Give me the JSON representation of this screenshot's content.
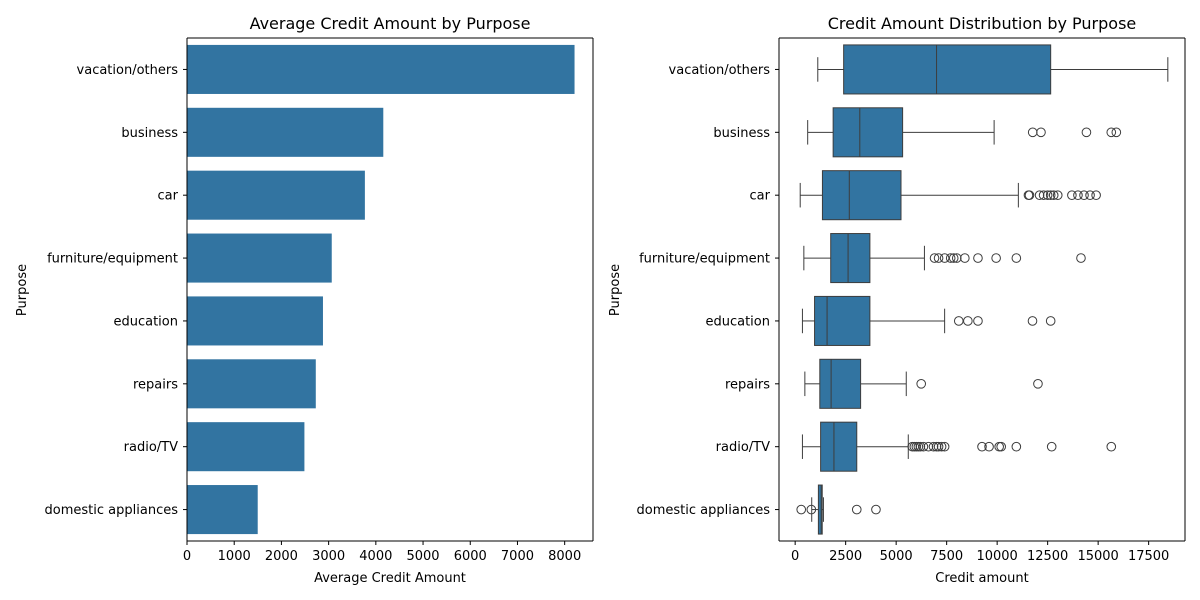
{
  "chart_data": [
    {
      "type": "bar",
      "orientation": "horizontal",
      "title": "Average Credit Amount by Purpose",
      "xlabel": "Average Credit Amount",
      "ylabel": "Purpose",
      "categories": [
        "vacation/others",
        "business",
        "car",
        "furniture/equipment",
        "education",
        "repairs",
        "radio/TV",
        "domestic appliances"
      ],
      "values": [
        8209,
        4158,
        3768,
        3066,
        2880,
        2728,
        2487,
        1498
      ],
      "xlim": [
        0,
        8600
      ],
      "xticks": [
        0,
        1000,
        2000,
        3000,
        4000,
        5000,
        6000,
        7000,
        8000
      ],
      "color": "#3274a1",
      "grid": false
    },
    {
      "type": "box",
      "orientation": "horizontal",
      "title": "Credit Amount Distribution by Purpose",
      "xlabel": "Credit amount",
      "ylabel": "Purpose",
      "categories": [
        "vacation/others",
        "business",
        "car",
        "furniture/equipment",
        "education",
        "repairs",
        "radio/TV",
        "domestic appliances"
      ],
      "boxes": [
        {
          "whislo": 1120,
          "q1": 2400,
          "median": 7000,
          "q3": 12650,
          "whishi": 18450,
          "fliers": []
        },
        {
          "whislo": 620,
          "q1": 1880,
          "median": 3200,
          "q3": 5320,
          "whishi": 9850,
          "fliers": [
            11760,
            12170,
            14420,
            15650,
            15900
          ]
        },
        {
          "whislo": 250,
          "q1": 1350,
          "median": 2680,
          "q3": 5240,
          "whishi": 11050,
          "fliers": [
            11550,
            11600,
            12100,
            12300,
            12500,
            12650,
            12800,
            13000,
            13700,
            14000,
            14300,
            14600,
            14900
          ]
        },
        {
          "whislo": 430,
          "q1": 1760,
          "median": 2620,
          "q3": 3700,
          "whishi": 6400,
          "fliers": [
            6900,
            7100,
            7400,
            7700,
            7850,
            8000,
            8400,
            9050,
            9950,
            10950,
            14150
          ]
        },
        {
          "whislo": 360,
          "q1": 960,
          "median": 1580,
          "q3": 3700,
          "whishi": 7400,
          "fliers": [
            8100,
            8550,
            9050,
            11750,
            12650
          ]
        },
        {
          "whislo": 480,
          "q1": 1220,
          "median": 1780,
          "q3": 3240,
          "whishi": 5500,
          "fliers": [
            6240,
            12020
          ]
        },
        {
          "whislo": 360,
          "q1": 1260,
          "median": 1920,
          "q3": 3050,
          "whishi": 5600,
          "fliers": [
            5800,
            5900,
            6000,
            6100,
            6200,
            6350,
            6600,
            6850,
            7000,
            7100,
            7250,
            7400,
            9250,
            9600,
            10100,
            10200,
            10950,
            12700,
            15650
          ]
        },
        {
          "whislo": 820,
          "q1": 1150,
          "median": 1290,
          "q3": 1340,
          "whishi": 1400,
          "fliers": [
            300,
            800,
            3050,
            4000
          ]
        }
      ],
      "xlim": [
        -800,
        19300
      ],
      "xticks": [
        0,
        2500,
        5000,
        7500,
        10000,
        12500,
        15000,
        17500
      ],
      "color": "#3274a1",
      "grid": false
    }
  ]
}
